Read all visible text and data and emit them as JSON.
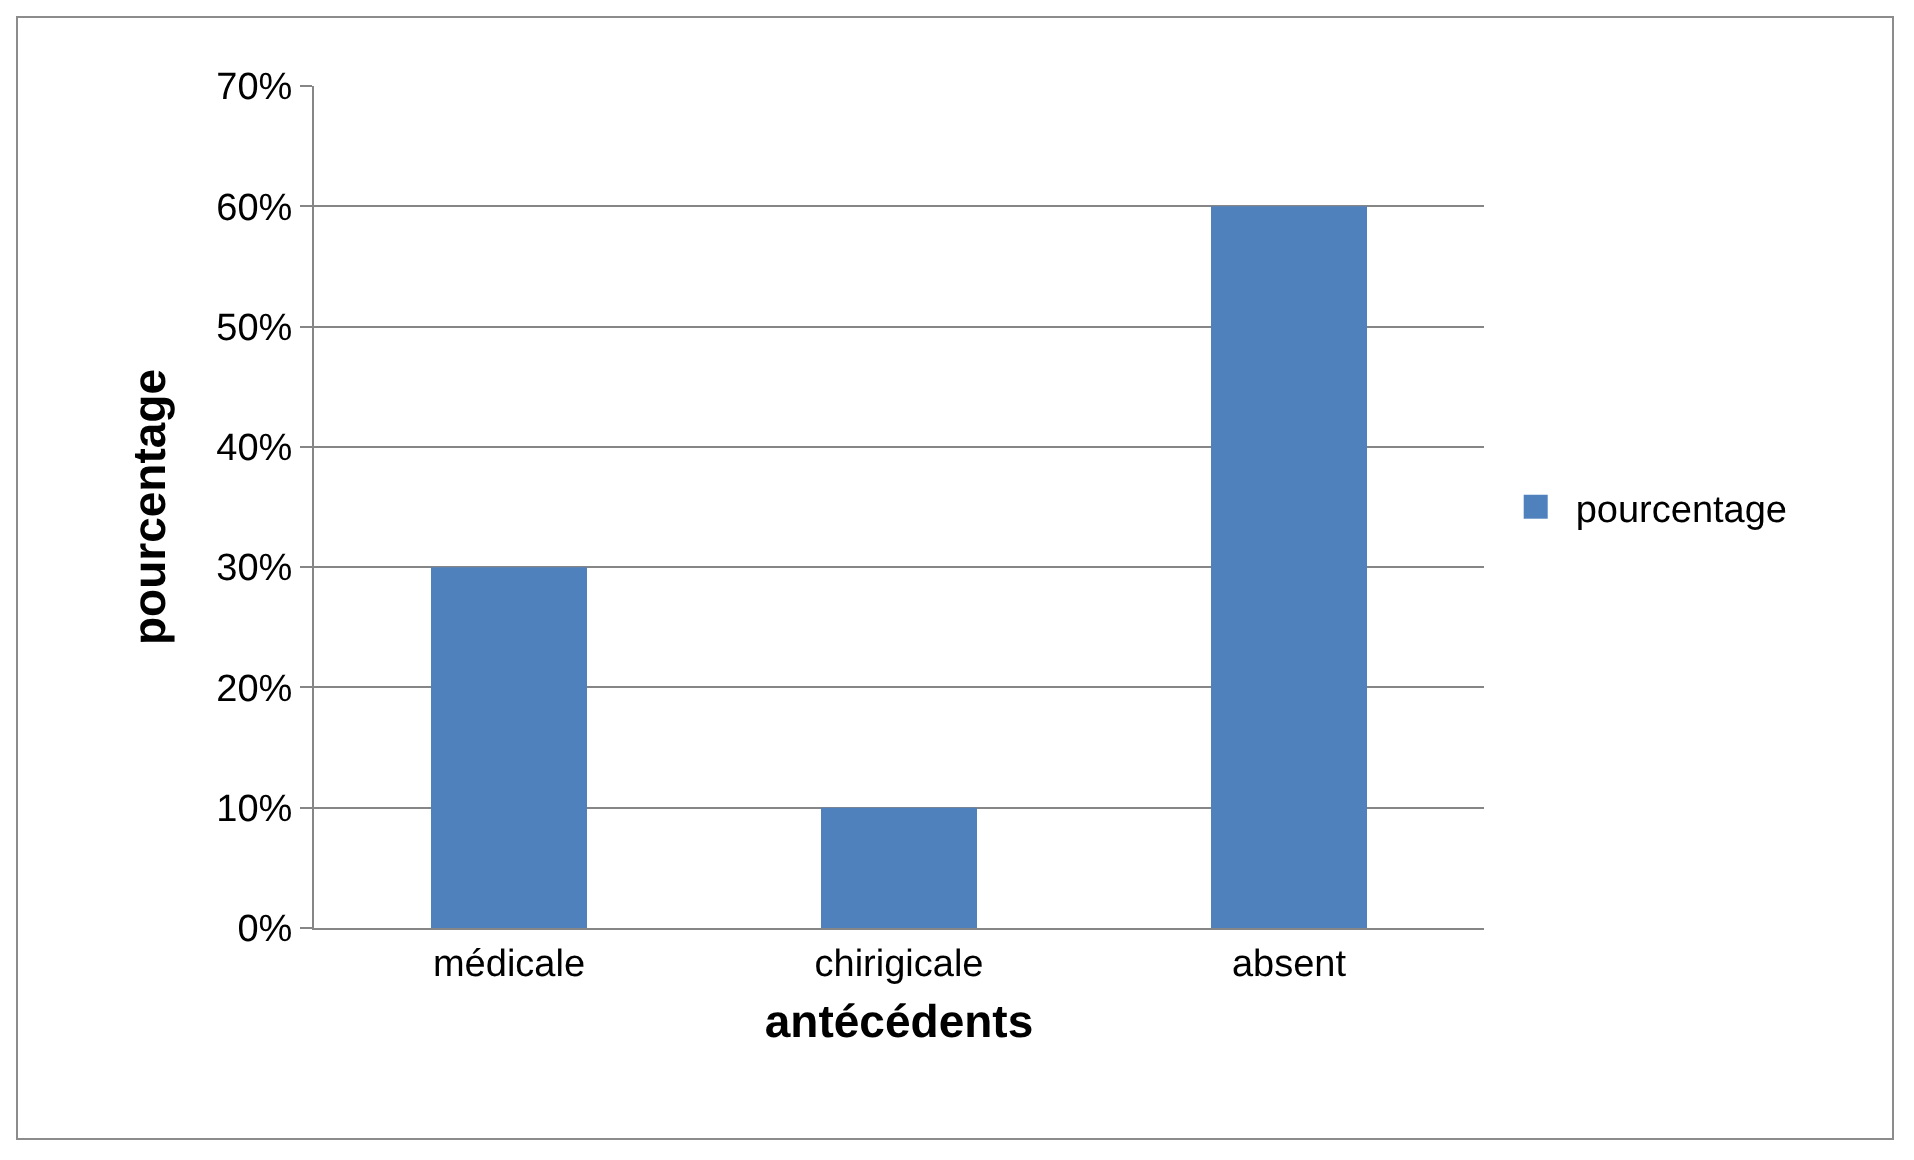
{
  "chart_data": {
    "type": "bar",
    "xlabel": "antécédents",
    "ylabel": "pourcentage",
    "categories": [
      "médicale",
      "chirigicale",
      "absent"
    ],
    "series": [
      {
        "name": "pourcentage",
        "color": "#4f81bd",
        "values": [
          30,
          10,
          60
        ]
      }
    ],
    "ylim": [
      0,
      70
    ],
    "yticks": [
      {
        "value": 0,
        "label": "0%"
      },
      {
        "value": 10,
        "label": "10%"
      },
      {
        "value": 20,
        "label": "20%"
      },
      {
        "value": 30,
        "label": "30%"
      },
      {
        "value": 40,
        "label": "40%"
      },
      {
        "value": 50,
        "label": "50%"
      },
      {
        "value": 60,
        "label": "60%"
      },
      {
        "value": 70,
        "label": "70%"
      }
    ],
    "grid": "y",
    "legend": "right"
  }
}
